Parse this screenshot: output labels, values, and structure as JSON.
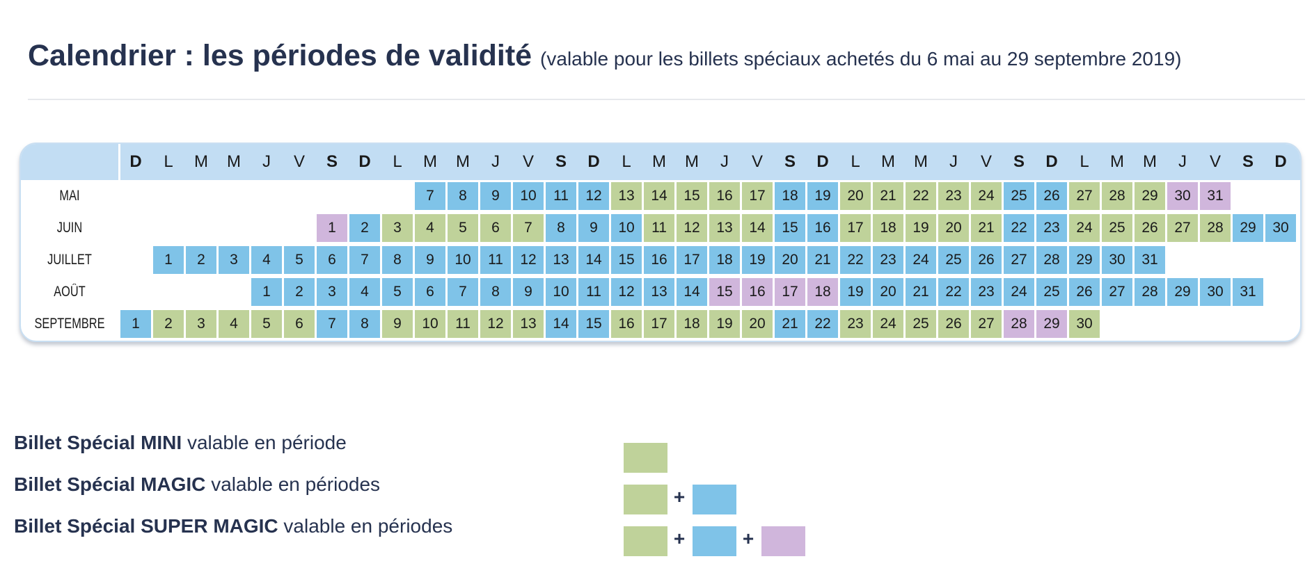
{
  "title": {
    "main": "Calendrier : les périodes de validité",
    "sub": "(valable pour les billets spéciaux achetés du 6 mai au 29 septembre 2019)"
  },
  "colors": {
    "G": "#bfd29a",
    "B": "#7fc3e8",
    "P": "#d0b6dc"
  },
  "weekday_header": [
    {
      "l": "D",
      "we": true
    },
    {
      "l": "L"
    },
    {
      "l": "M"
    },
    {
      "l": "M"
    },
    {
      "l": "J"
    },
    {
      "l": "V"
    },
    {
      "l": "S",
      "we": true
    },
    {
      "l": "D",
      "we": true
    },
    {
      "l": "L"
    },
    {
      "l": "M"
    },
    {
      "l": "M"
    },
    {
      "l": "J"
    },
    {
      "l": "V"
    },
    {
      "l": "S",
      "we": true
    },
    {
      "l": "D",
      "we": true
    },
    {
      "l": "L"
    },
    {
      "l": "M"
    },
    {
      "l": "M"
    },
    {
      "l": "J"
    },
    {
      "l": "V"
    },
    {
      "l": "S",
      "we": true
    },
    {
      "l": "D",
      "we": true
    },
    {
      "l": "L"
    },
    {
      "l": "M"
    },
    {
      "l": "M"
    },
    {
      "l": "J"
    },
    {
      "l": "V"
    },
    {
      "l": "S",
      "we": true
    },
    {
      "l": "D",
      "we": true
    },
    {
      "l": "L"
    },
    {
      "l": "M"
    },
    {
      "l": "M"
    },
    {
      "l": "J"
    },
    {
      "l": "V"
    },
    {
      "l": "S",
      "we": true
    },
    {
      "l": "D",
      "we": true
    }
  ],
  "months": [
    {
      "name": "MAI",
      "start_col": 9,
      "first_day": 7,
      "colors": "BBBBBBGGGGGBBGGGGGBBGGGPP"
    },
    {
      "name": "JUIN",
      "start_col": 6,
      "first_day": 1,
      "colors": "PBGGGGGBBBGGGGBBGGGGGBBGGGGGBB"
    },
    {
      "name": "JUILLET",
      "start_col": 1,
      "first_day": 1,
      "colors": "BBBBBBBBBBBBBBBBBBBBBBBBBBBBBBB"
    },
    {
      "name": "AOÛT",
      "start_col": 4,
      "first_day": 1,
      "colors": "BBBBBBBBBBBBBBPPPPBBBBBBBBBBBBB"
    },
    {
      "name": "SEPTEMBRE",
      "start_col": 0,
      "first_day": 1,
      "colors": "BGGGGGBBGGGGGBBGGGGGBBGGGGGPPG"
    }
  ],
  "legend": [
    {
      "name": "Billet Spécial MINI",
      "text": "valable en période",
      "swatches": [
        "G"
      ]
    },
    {
      "name": "Billet Spécial MAGIC",
      "text": "valable en périodes",
      "swatches": [
        "G",
        "B"
      ]
    },
    {
      "name": "Billet Spécial SUPER MAGIC",
      "text": "valable en périodes",
      "swatches": [
        "G",
        "B",
        "P"
      ]
    }
  ]
}
